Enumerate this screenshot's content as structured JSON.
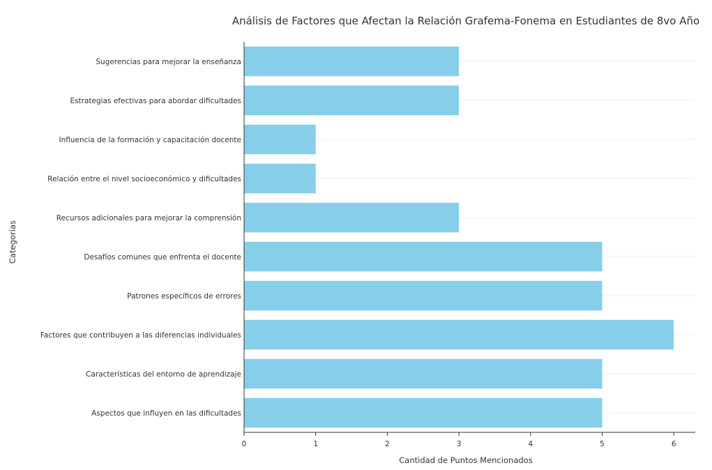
{
  "chart_data": {
    "type": "bar",
    "orientation": "horizontal",
    "title": "Análisis de Factores que Afectan la Relación Grafema-Fonema en Estudiantes de 8vo Año",
    "xlabel": "Cantidad de Puntos Mencionados",
    "ylabel": "Categorías",
    "xlim": [
      0,
      6.3
    ],
    "xticks": [
      0,
      1,
      2,
      3,
      4,
      5,
      6
    ],
    "grid": true,
    "bar_color": "#87ceeb",
    "categories": [
      "Sugerencias para mejorar la enseñanza",
      "Estrategias efectivas para abordar dificultades",
      "Influencia de la formación y capacitación docente",
      "Relación entre el nivel socioeconómico y dificultades",
      "Recursos adicionales para mejorar la comprensión",
      "Desafíos comunes que enfrenta el docente",
      "Patrones específicos de errores",
      "Factores que contribuyen a las diferencias individuales",
      "Características del entorno de aprendizaje",
      "Aspectos que influyen en las dificultades"
    ],
    "values": [
      3,
      3,
      1,
      1,
      3,
      5,
      5,
      6,
      5,
      5
    ]
  }
}
